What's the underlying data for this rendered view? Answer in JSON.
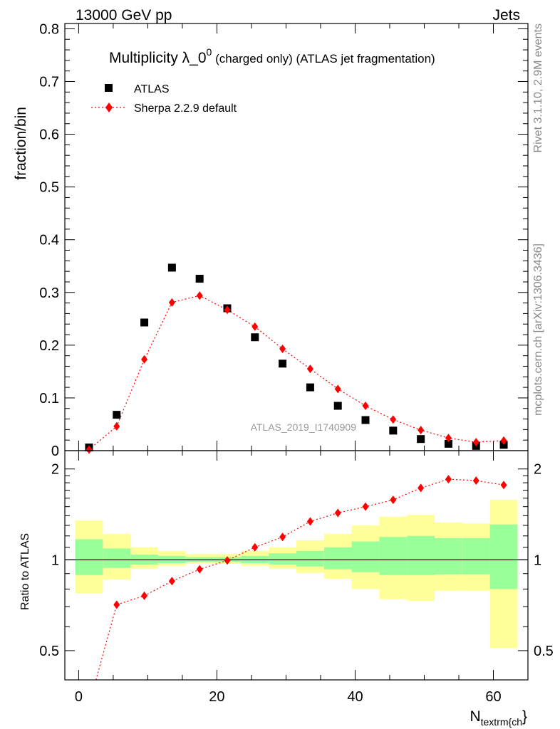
{
  "header": {
    "left": "13000 GeV pp",
    "right": "Jets"
  },
  "side_labels": {
    "rivet": "Rivet 3.1.10,  2.9M events",
    "mcplots": "mcplots.cern.ch [arXiv:1306.3436]"
  },
  "plot_title": {
    "main": "Multiplicity λ_0",
    "superscript": "0",
    "suffix": " (charged only) (ATLAS jet fragmentation)"
  },
  "analysis_id": "ATLAS_2019_I1740909",
  "axes": {
    "ylabel_top": "fraction/bin",
    "ylabel_bottom": "Ratio to ATLAS",
    "xlabel_main": "N",
    "xlabel_sub": "textrm{ch",
    "xlabel_close": "}"
  },
  "legend": {
    "placement": "top-left",
    "entries": [
      {
        "label": "ATLAS",
        "marker": "square",
        "color": "#000000"
      },
      {
        "label": "Sherpa 2.2.9 default",
        "marker": "diamond",
        "color": "#ff0000",
        "line": "dotted"
      }
    ]
  },
  "colors": {
    "data": "#000000",
    "mc": "#ff0000",
    "band_inner": "#99ff99",
    "band_outer": "#ffff99"
  },
  "chart_data": [
    {
      "type": "scatter",
      "panel": "main",
      "xlim": [
        -2,
        65
      ],
      "ylim": [
        0,
        0.81
      ],
      "y_ticks": [
        0,
        0.1,
        0.2,
        0.3,
        0.4,
        0.5,
        0.6,
        0.7,
        0.8
      ],
      "y_tick_labels": [
        "0",
        "0.1",
        "0.2",
        "0.3",
        "0.4",
        "0.5",
        "0.6",
        "0.7",
        "0.8"
      ],
      "x_ticks": [
        0,
        20,
        40,
        60
      ],
      "x_tick_labels": [
        "0",
        "20",
        "40",
        "60"
      ],
      "bin_edges": [
        -0.5,
        3.5,
        7.5,
        11.5,
        15.5,
        19.5,
        23.5,
        27.5,
        31.5,
        35.5,
        39.5,
        43.5,
        47.5,
        51.5,
        55.5,
        59.5,
        63.5
      ],
      "series": [
        {
          "name": "ATLAS",
          "x": [
            1.5,
            5.5,
            9.5,
            13.5,
            17.5,
            21.5,
            25.5,
            29.5,
            33.5,
            37.5,
            41.5,
            45.5,
            49.5,
            53.5,
            57.5,
            61.5
          ],
          "values": [
            0.006,
            0.068,
            0.243,
            0.347,
            0.326,
            0.27,
            0.215,
            0.165,
            0.12,
            0.085,
            0.058,
            0.038,
            0.022,
            0.013,
            0.009,
            0.011
          ]
        },
        {
          "name": "Sherpa 2.2.9 default",
          "x": [
            1.5,
            5.5,
            9.5,
            13.5,
            17.5,
            21.5,
            25.5,
            29.5,
            33.5,
            37.5,
            41.5,
            45.5,
            49.5,
            53.5,
            57.5,
            61.5
          ],
          "values": [
            0.002,
            0.046,
            0.173,
            0.281,
            0.294,
            0.267,
            0.235,
            0.193,
            0.155,
            0.117,
            0.085,
            0.059,
            0.039,
            0.024,
            0.016,
            0.019
          ]
        }
      ]
    },
    {
      "type": "scatter",
      "panel": "ratio",
      "xlim": [
        -2,
        65
      ],
      "ylim": [
        0.4,
        2.3
      ],
      "y_ticks": [
        0.5,
        1,
        2
      ],
      "y_tick_labels": [
        "0.5",
        "1",
        "2"
      ],
      "x_ticks": [
        0,
        20,
        40,
        60
      ],
      "x_tick_labels": [
        "0",
        "20",
        "40",
        "60"
      ],
      "bin_edges": [
        -0.5,
        3.5,
        7.5,
        11.5,
        15.5,
        19.5,
        23.5,
        27.5,
        31.5,
        35.5,
        39.5,
        43.5,
        47.5,
        51.5,
        55.5,
        59.5,
        63.5
      ],
      "band_inner_low": [
        0.89,
        0.94,
        0.965,
        0.975,
        0.985,
        0.985,
        0.975,
        0.965,
        0.95,
        0.93,
        0.91,
        0.89,
        0.89,
        0.895,
        0.895,
        0.8
      ],
      "band_inner_high": [
        1.17,
        1.09,
        1.04,
        1.03,
        1.02,
        1.02,
        1.03,
        1.05,
        1.07,
        1.1,
        1.15,
        1.19,
        1.2,
        1.18,
        1.18,
        1.31
      ],
      "band_outer_low": [
        0.775,
        0.86,
        0.935,
        0.955,
        0.97,
        0.97,
        0.955,
        0.935,
        0.905,
        0.865,
        0.8,
        0.74,
        0.73,
        0.79,
        0.79,
        0.51
      ],
      "band_outer_high": [
        1.35,
        1.22,
        1.1,
        1.07,
        1.045,
        1.045,
        1.07,
        1.1,
        1.16,
        1.22,
        1.3,
        1.39,
        1.41,
        1.33,
        1.32,
        1.58
      ],
      "series": [
        {
          "name": "Sherpa 2.2.9 default",
          "x": [
            1.5,
            5.5,
            9.5,
            13.5,
            17.5,
            21.5,
            25.5,
            29.5,
            33.5,
            37.5,
            41.5,
            45.5,
            49.5,
            53.5,
            57.5,
            61.5
          ],
          "values": [
            0.33,
            0.71,
            0.76,
            0.85,
            0.93,
            0.995,
            1.1,
            1.19,
            1.34,
            1.43,
            1.5,
            1.58,
            1.73,
            1.85,
            1.83,
            1.77
          ]
        }
      ]
    }
  ]
}
